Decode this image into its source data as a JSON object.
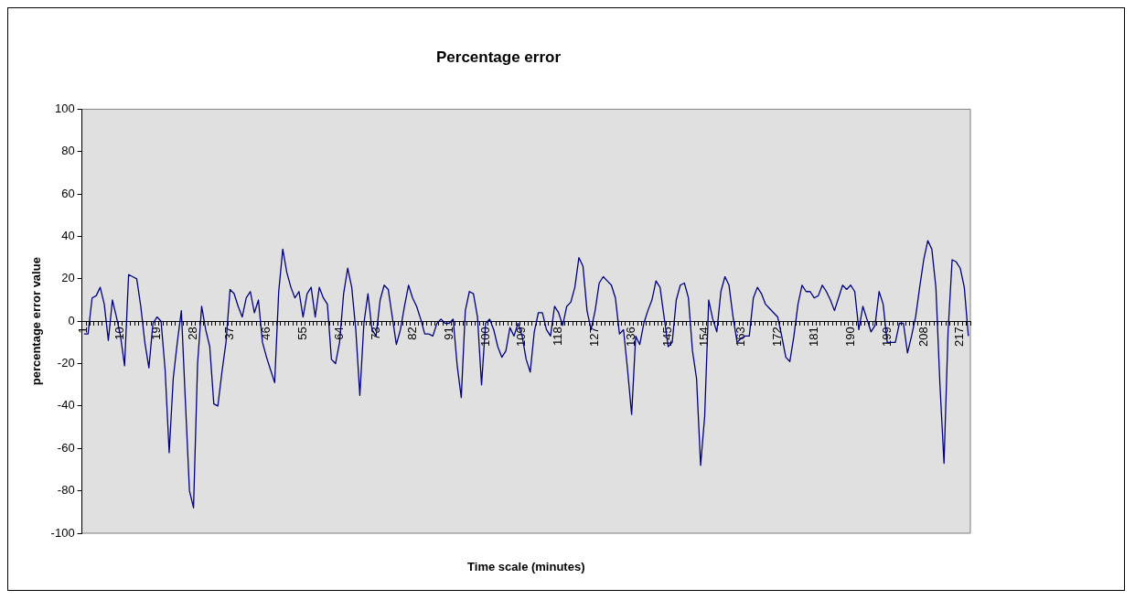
{
  "chart_data": {
    "type": "line",
    "title": "Percentage error",
    "xlabel": "Time scale (minutes)",
    "ylabel": "percentage error value",
    "categories": [
      "1",
      null,
      null,
      null,
      null,
      null,
      null,
      null,
      null,
      "10",
      null,
      null,
      null,
      null,
      null,
      null,
      null,
      null,
      "19",
      null,
      null,
      null,
      null,
      null,
      null,
      null,
      null,
      "28",
      null,
      null,
      null,
      null,
      null,
      null,
      null,
      null,
      "37",
      null,
      null,
      null,
      null,
      null,
      null,
      null,
      null,
      "46",
      null,
      null,
      null,
      null,
      null,
      null,
      null,
      null,
      "55",
      null,
      null,
      null,
      null,
      null,
      null,
      null,
      null,
      "64",
      null,
      null,
      null,
      null,
      null,
      null,
      null,
      null,
      "73",
      null,
      null,
      null,
      null,
      null,
      null,
      null,
      null,
      "82",
      null,
      null,
      null,
      null,
      null,
      null,
      null,
      null,
      "91",
      null,
      null,
      null,
      null,
      null,
      null,
      null,
      null,
      "100",
      null,
      null,
      null,
      null,
      null,
      null,
      null,
      null,
      "109",
      null,
      null,
      null,
      null,
      null,
      null,
      null,
      null,
      "118",
      null,
      null,
      null,
      null,
      null,
      null,
      null,
      null,
      "127",
      null,
      null,
      null,
      null,
      null,
      null,
      null,
      null,
      "136",
      null,
      null,
      null,
      null,
      null,
      null,
      null,
      null,
      "145",
      null,
      null,
      null,
      null,
      null,
      null,
      null,
      null,
      "154",
      null,
      null,
      null,
      null,
      null,
      null,
      null,
      null,
      "163",
      null,
      null,
      null,
      null,
      null,
      null,
      null,
      null,
      "172",
      null,
      null,
      null,
      null,
      null,
      null,
      null,
      null,
      "181",
      null,
      null,
      null,
      null,
      null,
      null,
      null,
      null,
      "190",
      null,
      null,
      null,
      null,
      null,
      null,
      null,
      null,
      "199",
      null,
      null,
      null,
      null,
      null,
      null,
      null,
      null,
      "208",
      null,
      null,
      null,
      null,
      null,
      null,
      null,
      null,
      "217",
      null,
      null
    ],
    "values": [
      -6,
      -6,
      11,
      12,
      16,
      8,
      -9,
      10,
      2,
      -7,
      -21,
      22,
      21,
      20,
      7,
      -10,
      -22,
      -1,
      2,
      0,
      -23,
      -62,
      -27,
      -10,
      5,
      -38,
      -80,
      -88,
      -20,
      7,
      -4,
      -12,
      -39,
      -40,
      -24,
      -10,
      15,
      13,
      7,
      2,
      11,
      14,
      4,
      10,
      -10,
      -17,
      -23,
      -29,
      14,
      34,
      23,
      16,
      11,
      14,
      2,
      13,
      16,
      2,
      16,
      11,
      8,
      -18,
      -20,
      -10,
      13,
      25,
      16,
      -4,
      -35,
      -1,
      13,
      -4,
      -7,
      10,
      17,
      15,
      2,
      -11,
      -4,
      7,
      17,
      11,
      7,
      1,
      -6,
      -6,
      -7,
      -1,
      1,
      -1,
      -1,
      1,
      -21,
      -36,
      5,
      14,
      13,
      2,
      -30,
      -1,
      1,
      -4,
      -12,
      -17,
      -14,
      -3,
      -7,
      -1,
      -7,
      -18,
      -24,
      -5,
      4,
      4,
      -4,
      -7,
      7,
      4,
      -2,
      7,
      9,
      16,
      30,
      26,
      5,
      -4,
      5,
      18,
      21,
      19,
      17,
      11,
      -6,
      -4,
      -23,
      -44,
      -7,
      -11,
      -1,
      5,
      10,
      19,
      16,
      2,
      -12,
      -10,
      10,
      17,
      18,
      11,
      -14,
      -27,
      -68,
      -45,
      10,
      1,
      -5,
      14,
      21,
      17,
      2,
      -10,
      -8,
      -7,
      -7,
      11,
      16,
      13,
      8,
      6,
      4,
      2,
      -7,
      -17,
      -19,
      -7,
      8,
      17,
      14,
      14,
      11,
      12,
      17,
      14,
      10,
      5,
      11,
      17,
      15,
      17,
      14,
      -4,
      7,
      1,
      -5,
      -2,
      14,
      8,
      -10,
      -10,
      -10,
      -1,
      -1,
      -15,
      -7,
      2,
      16,
      29,
      38,
      34,
      16,
      -30,
      -67,
      -5,
      29,
      28,
      25,
      16,
      -7
    ],
    "color": "#000080",
    "marker": "none",
    "line_style": "solid",
    "ylim": [
      -100,
      100
    ],
    "yticks": [
      -100,
      -80,
      -60,
      -40,
      -20,
      0,
      20,
      40,
      60,
      80,
      100
    ],
    "grid": false,
    "legend": false
  }
}
